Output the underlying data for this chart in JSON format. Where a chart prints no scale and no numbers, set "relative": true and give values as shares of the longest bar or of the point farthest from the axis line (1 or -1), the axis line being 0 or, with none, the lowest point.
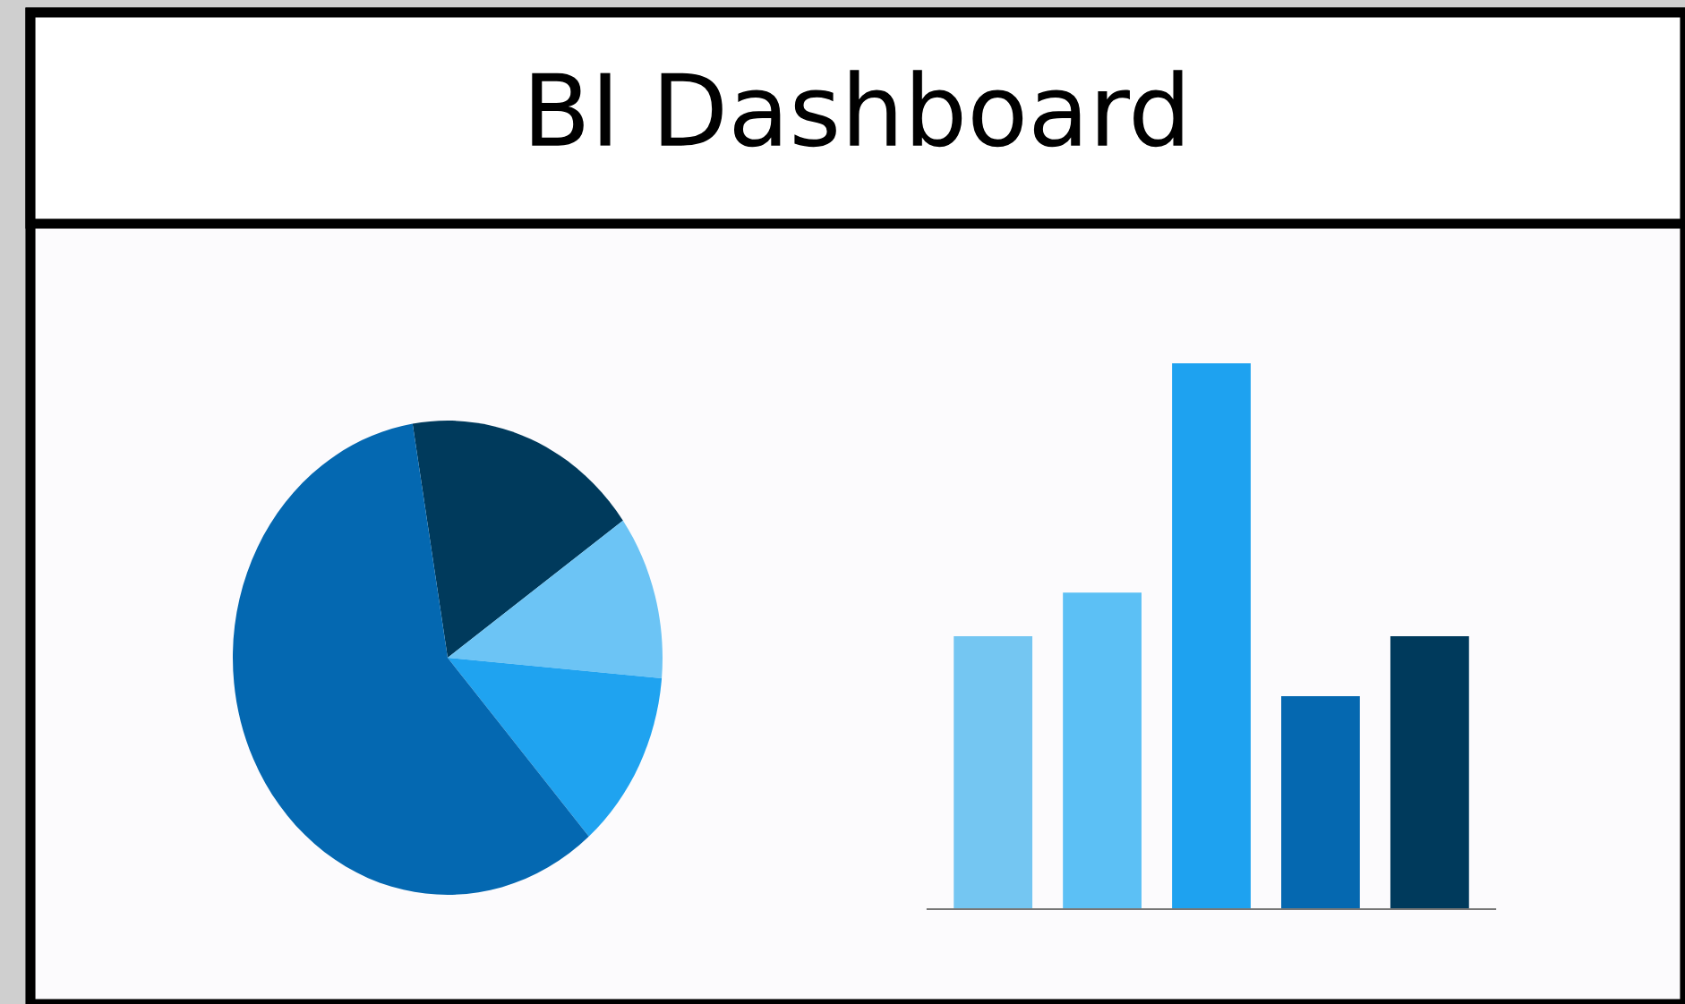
{
  "chart_data": [
    {
      "type": "pie",
      "title": "BI Dashboard",
      "categories": [
        null,
        null,
        null,
        null
      ],
      "values": [
        17.8,
        11.2,
        12.2,
        58.8
      ],
      "colors": [
        "#003a5c",
        "#6cc4f5",
        "#1fa3f0",
        "#0468b1"
      ]
    },
    {
      "type": "bar",
      "relative": true,
      "categories": [
        null,
        null,
        null,
        null,
        null
      ],
      "values": [
        0.5,
        0.58,
        1,
        0.39,
        0.5
      ],
      "colors": [
        "#74c6f2",
        "#5cc0f5",
        "#1ea2f0",
        "#0568b0",
        "#003a5c"
      ]
    }
  ]
}
